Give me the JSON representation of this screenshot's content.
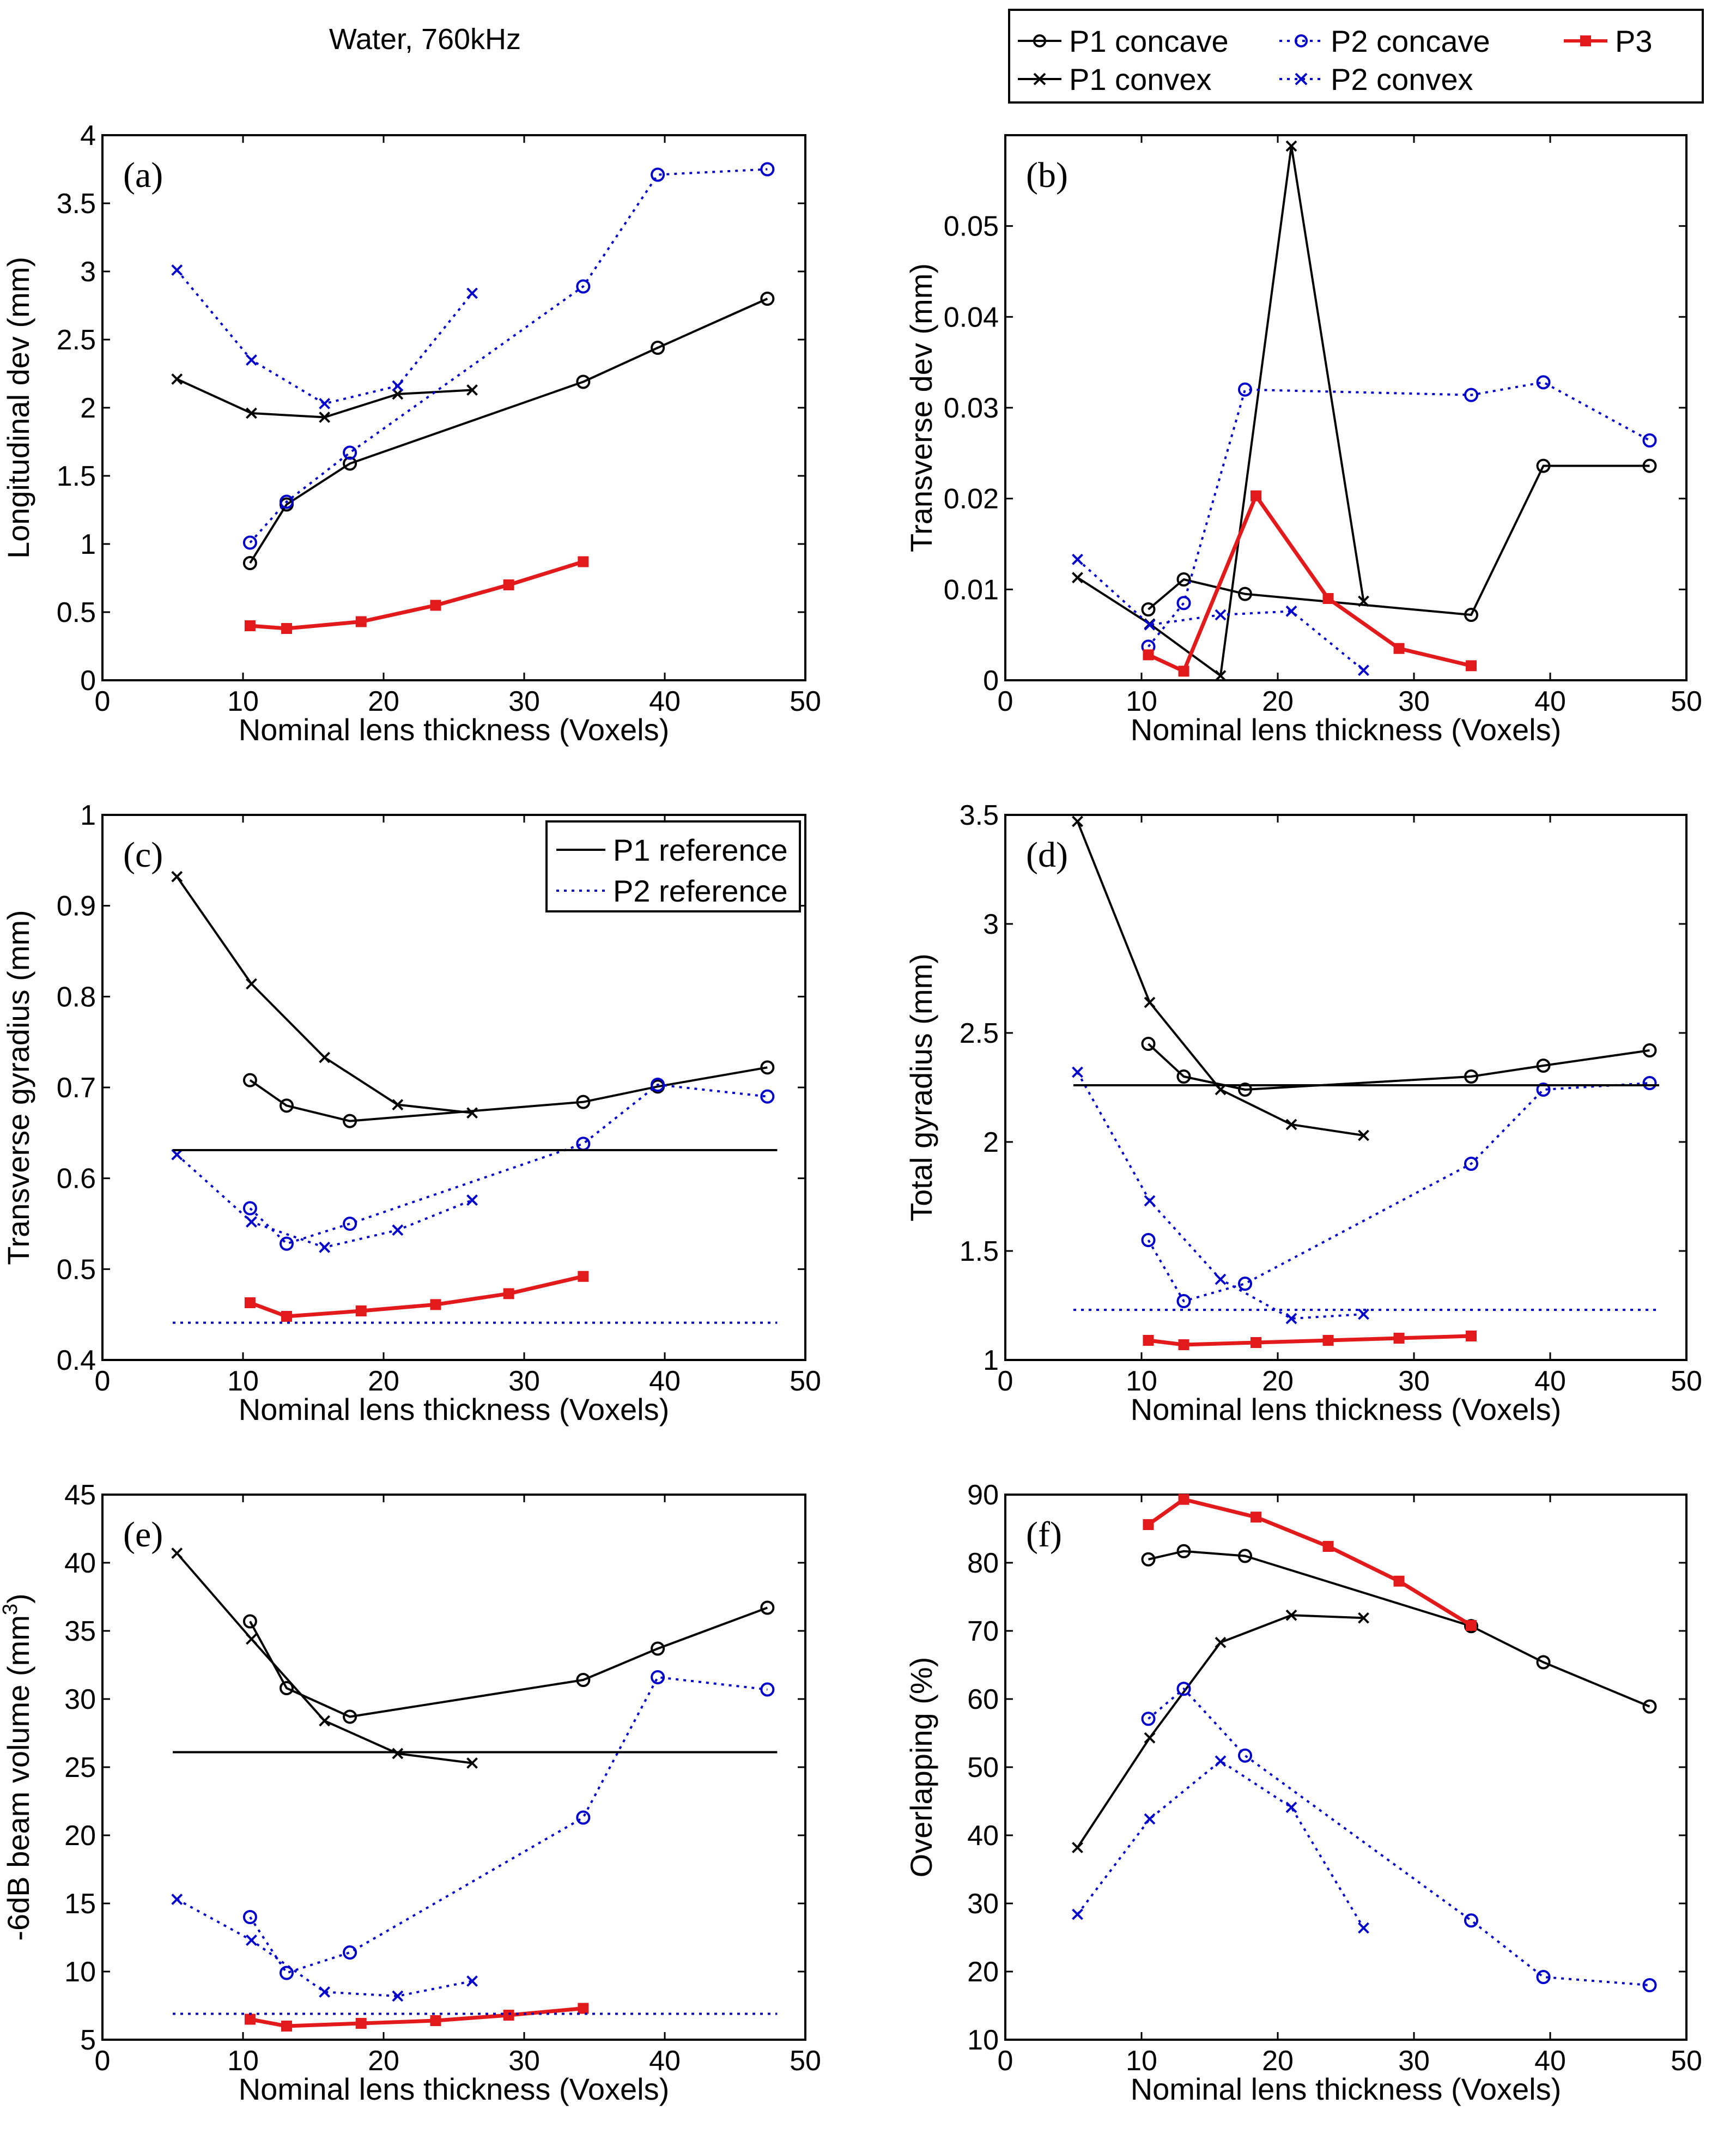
{
  "figure_title": "Water, 760kHz",
  "legend": {
    "entries": [
      {
        "key": "p1c",
        "label": "P1 concave"
      },
      {
        "key": "p2c",
        "label": "P2 concave"
      },
      {
        "key": "p3",
        "label": "P3"
      },
      {
        "key": "p1x",
        "label": "P1 convex"
      },
      {
        "key": "p2x",
        "label": "P2 convex"
      }
    ]
  },
  "styles": {
    "p1c": {
      "color": "#000000",
      "marker": "circle",
      "dash": "solid"
    },
    "p1x": {
      "color": "#000000",
      "marker": "cross",
      "dash": "solid"
    },
    "p2c": {
      "color": "#0000cc",
      "marker": "circle",
      "dash": "dotted"
    },
    "p2x": {
      "color": "#0000cc",
      "marker": "cross",
      "dash": "dotted"
    },
    "p3": {
      "color": "#e31a1c",
      "marker": "square",
      "dash": "solid"
    },
    "ref1": {
      "color": "#000000",
      "marker": "none",
      "dash": "solid"
    },
    "ref2": {
      "color": "#0000cc",
      "marker": "none",
      "dash": "dotted"
    }
  },
  "chart_data": [
    {
      "panel": "(a)",
      "type": "line",
      "xlabel": "Nominal lens thickness (Voxels)",
      "ylabel": "Longitudinal dev (mm)",
      "xlim": [
        0,
        50
      ],
      "ylim": [
        0,
        4
      ],
      "xticks": [
        "0",
        "10",
        "20",
        "30",
        "40",
        "50"
      ],
      "yticks": [
        "0",
        "0.5",
        "1",
        "1.5",
        "2",
        "2.5",
        "3",
        "3.5",
        "4"
      ],
      "series": [
        {
          "key": "p1c",
          "name": "P1 concave",
          "x": [
            10.5,
            13.1,
            17.6,
            34.2,
            39.5,
            47.3
          ],
          "y": [
            0.86,
            1.29,
            1.59,
            2.19,
            2.44,
            2.8
          ]
        },
        {
          "key": "p1x",
          "name": "P1 convex",
          "x": [
            5.3,
            10.6,
            15.8,
            21.0,
            26.3
          ],
          "y": [
            2.21,
            1.96,
            1.93,
            2.1,
            2.13
          ]
        },
        {
          "key": "p2c",
          "name": "P2 concave",
          "x": [
            10.5,
            13.1,
            17.6,
            34.2,
            39.5,
            47.3
          ],
          "y": [
            1.01,
            1.31,
            1.67,
            2.89,
            3.71,
            3.75
          ]
        },
        {
          "key": "p2x",
          "name": "P2 convex",
          "x": [
            5.3,
            10.6,
            15.8,
            21.0,
            26.3
          ],
          "y": [
            3.01,
            2.35,
            2.03,
            2.16,
            2.84
          ]
        },
        {
          "key": "p3",
          "name": "P3",
          "x": [
            10.5,
            13.1,
            18.4,
            23.7,
            28.9,
            34.2
          ],
          "y": [
            0.4,
            0.38,
            0.43,
            0.55,
            0.7,
            0.87
          ]
        }
      ]
    },
    {
      "panel": "(b)",
      "type": "line",
      "xlabel": "Nominal lens thickness (Voxels)",
      "ylabel": "Transverse dev (mm)",
      "xlim": [
        0,
        50
      ],
      "ylim": [
        0,
        0.06
      ],
      "xticks": [
        "0",
        "10",
        "20",
        "30",
        "40",
        "50"
      ],
      "yticks": [
        "0",
        "0.01",
        "0.02",
        "0.03",
        "0.04",
        "0.05"
      ],
      "series": [
        {
          "key": "p1c",
          "name": "P1 concave",
          "x": [
            10.5,
            13.1,
            17.6,
            34.2,
            39.5,
            47.3
          ],
          "y": [
            0.0078,
            0.0111,
            0.0095,
            0.0072,
            0.0236,
            0.0236
          ]
        },
        {
          "key": "p1x",
          "name": "P1 convex",
          "x": [
            5.3,
            10.6,
            15.8,
            21.0,
            26.3
          ],
          "y": [
            0.0113,
            0.0062,
            0.0005,
            0.0588,
            0.0087
          ]
        },
        {
          "key": "p2c",
          "name": "P2 concave",
          "x": [
            10.5,
            13.1,
            17.6,
            34.2,
            39.5,
            47.3
          ],
          "y": [
            0.0037,
            0.0085,
            0.032,
            0.0314,
            0.0328,
            0.0264
          ]
        },
        {
          "key": "p2x",
          "name": "P2 convex",
          "x": [
            5.3,
            10.6,
            15.8,
            21.0,
            26.3
          ],
          "y": [
            0.0133,
            0.0061,
            0.0072,
            0.0076,
            0.0011
          ]
        },
        {
          "key": "p3",
          "name": "P3",
          "x": [
            10.5,
            13.1,
            18.4,
            23.7,
            28.9,
            34.2
          ],
          "y": [
            0.0028,
            0.001,
            0.0203,
            0.009,
            0.0035,
            0.0016
          ]
        }
      ]
    },
    {
      "panel": "(c)",
      "type": "line",
      "xlabel": "Nominal lens thickness (Voxels)",
      "ylabel": "Transverse gyradius (mm)",
      "xlim": [
        0,
        50
      ],
      "ylim": [
        0.4,
        1.0
      ],
      "xticks": [
        "0",
        "10",
        "20",
        "30",
        "40",
        "50"
      ],
      "yticks": [
        "0.4",
        "0.5",
        "0.6",
        "0.7",
        "0.8",
        "0.9",
        "1"
      ],
      "legend": [
        {
          "key": "ref1",
          "label": "P1 reference"
        },
        {
          "key": "ref2",
          "label": "P2 reference"
        }
      ],
      "series": [
        {
          "key": "p1c",
          "name": "P1 concave",
          "x": [
            10.5,
            13.1,
            17.6,
            34.2,
            39.5,
            47.3
          ],
          "y": [
            0.708,
            0.68,
            0.663,
            0.684,
            0.701,
            0.722
          ]
        },
        {
          "key": "p1x",
          "name": "P1 convex",
          "x": [
            5.3,
            10.6,
            15.8,
            21.0,
            26.3
          ],
          "y": [
            0.932,
            0.814,
            0.733,
            0.681,
            0.672
          ]
        },
        {
          "key": "p2c",
          "name": "P2 concave",
          "x": [
            10.5,
            13.1,
            17.6,
            34.2,
            39.5,
            47.3
          ],
          "y": [
            0.567,
            0.528,
            0.55,
            0.638,
            0.703,
            0.69
          ]
        },
        {
          "key": "p2x",
          "name": "P2 convex",
          "x": [
            5.3,
            10.6,
            15.8,
            21.0,
            26.3
          ],
          "y": [
            0.626,
            0.552,
            0.524,
            0.543,
            0.576
          ]
        },
        {
          "key": "p3",
          "name": "P3",
          "x": [
            10.5,
            13.1,
            18.4,
            23.7,
            28.9,
            34.2
          ],
          "y": [
            0.463,
            0.448,
            0.454,
            0.461,
            0.473,
            0.492
          ]
        },
        {
          "key": "ref1",
          "name": "P1 reference",
          "x": [
            5,
            48
          ],
          "y": [
            0.631,
            0.631
          ]
        },
        {
          "key": "ref2",
          "name": "P2 reference",
          "x": [
            5,
            48
          ],
          "y": [
            0.441,
            0.441
          ]
        }
      ]
    },
    {
      "panel": "(d)",
      "type": "line",
      "xlabel": "Nominal lens thickness (Voxels)",
      "ylabel": "Total gyradius (mm)",
      "xlim": [
        0,
        50
      ],
      "ylim": [
        1,
        3.5
      ],
      "xticks": [
        "0",
        "10",
        "20",
        "30",
        "40",
        "50"
      ],
      "yticks": [
        "1",
        "1.5",
        "2",
        "2.5",
        "3",
        "3.5"
      ],
      "series": [
        {
          "key": "p1c",
          "name": "P1 concave",
          "x": [
            10.5,
            13.1,
            17.6,
            34.2,
            39.5,
            47.3
          ],
          "y": [
            2.45,
            2.3,
            2.24,
            2.3,
            2.35,
            2.42
          ]
        },
        {
          "key": "p1x",
          "name": "P1 convex",
          "x": [
            5.3,
            10.6,
            15.8,
            21.0,
            26.3
          ],
          "y": [
            3.47,
            2.64,
            2.24,
            2.08,
            2.03
          ]
        },
        {
          "key": "p2c",
          "name": "P2 concave",
          "x": [
            10.5,
            13.1,
            17.6,
            34.2,
            39.5,
            47.3
          ],
          "y": [
            1.55,
            1.27,
            1.35,
            1.9,
            2.24,
            2.27
          ]
        },
        {
          "key": "p2x",
          "name": "P2 convex",
          "x": [
            5.3,
            10.6,
            15.8,
            21.0,
            26.3
          ],
          "y": [
            2.32,
            1.73,
            1.37,
            1.19,
            1.21
          ]
        },
        {
          "key": "p3",
          "name": "P3",
          "x": [
            10.5,
            13.1,
            18.4,
            23.7,
            28.9,
            34.2
          ],
          "y": [
            1.09,
            1.07,
            1.08,
            1.09,
            1.1,
            1.11
          ]
        },
        {
          "key": "ref1",
          "name": "P1 reference",
          "x": [
            5,
            48
          ],
          "y": [
            2.26,
            2.26
          ]
        },
        {
          "key": "ref2",
          "name": "P2 reference",
          "x": [
            5,
            48
          ],
          "y": [
            1.23,
            1.23
          ]
        }
      ]
    },
    {
      "panel": "(e)",
      "type": "line",
      "xlabel": "Nominal lens thickness (Voxels)",
      "ylabel": "-6dB beam volume (mm",
      "ylabel_sup": "3",
      "ylabel_end": ")",
      "xlim": [
        0,
        50
      ],
      "ylim": [
        5,
        45
      ],
      "xticks": [
        "0",
        "10",
        "20",
        "30",
        "40",
        "50"
      ],
      "yticks": [
        "5",
        "10",
        "15",
        "20",
        "25",
        "30",
        "35",
        "40",
        "45"
      ],
      "series": [
        {
          "key": "p1c",
          "name": "P1 concave",
          "x": [
            10.5,
            13.1,
            17.6,
            34.2,
            39.5,
            47.3
          ],
          "y": [
            35.7,
            30.8,
            28.7,
            31.4,
            33.7,
            36.7
          ]
        },
        {
          "key": "p1x",
          "name": "P1 convex",
          "x": [
            5.3,
            10.6,
            15.8,
            21.0,
            26.3
          ],
          "y": [
            40.7,
            34.4,
            28.4,
            26.0,
            25.3
          ]
        },
        {
          "key": "p2c",
          "name": "P2 concave",
          "x": [
            10.5,
            13.1,
            17.6,
            34.2,
            39.5,
            47.3
          ],
          "y": [
            14.0,
            9.9,
            11.4,
            21.3,
            31.6,
            30.7
          ]
        },
        {
          "key": "p2x",
          "name": "P2 convex",
          "x": [
            5.3,
            10.6,
            15.8,
            21.0,
            26.3
          ],
          "y": [
            15.3,
            12.3,
            8.5,
            8.2,
            9.3
          ]
        },
        {
          "key": "p3",
          "name": "P3",
          "x": [
            10.5,
            13.1,
            18.4,
            23.7,
            28.9,
            34.2
          ],
          "y": [
            6.5,
            6.0,
            6.2,
            6.4,
            6.8,
            7.3
          ]
        },
        {
          "key": "ref1",
          "name": "P1 reference",
          "x": [
            5,
            48
          ],
          "y": [
            26.1,
            26.1
          ]
        },
        {
          "key": "ref2",
          "name": "P2 reference",
          "x": [
            5,
            48
          ],
          "y": [
            6.9,
            6.9
          ]
        }
      ]
    },
    {
      "panel": "(f)",
      "type": "line",
      "xlabel": "Nominal lens thickness (Voxels)",
      "ylabel": "Overlapping (%)",
      "xlim": [
        0,
        50
      ],
      "ylim": [
        10,
        90
      ],
      "xticks": [
        "0",
        "10",
        "20",
        "30",
        "40",
        "50"
      ],
      "yticks": [
        "10",
        "20",
        "30",
        "40",
        "50",
        "60",
        "70",
        "80",
        "90"
      ],
      "series": [
        {
          "key": "p1c",
          "name": "P1 concave",
          "x": [
            10.5,
            13.1,
            17.6,
            34.2,
            39.5,
            47.3
          ],
          "y": [
            80.5,
            81.7,
            81.0,
            70.7,
            65.4,
            58.9
          ]
        },
        {
          "key": "p1x",
          "name": "P1 convex",
          "x": [
            5.3,
            10.6,
            15.8,
            21.0,
            26.3
          ],
          "y": [
            38.2,
            54.3,
            68.3,
            72.3,
            71.9
          ]
        },
        {
          "key": "p2c",
          "name": "P2 concave",
          "x": [
            10.5,
            13.1,
            17.6,
            34.2,
            39.5,
            47.3
          ],
          "y": [
            57.1,
            61.5,
            51.7,
            27.5,
            19.2,
            18.0
          ]
        },
        {
          "key": "p2x",
          "name": "P2 convex",
          "x": [
            5.3,
            10.6,
            15.8,
            21.0,
            26.3
          ],
          "y": [
            28.4,
            42.4,
            50.9,
            44.1,
            26.4
          ]
        },
        {
          "key": "p3",
          "name": "P3",
          "x": [
            10.5,
            13.1,
            18.4,
            23.7,
            28.9,
            34.2
          ],
          "y": [
            85.6,
            89.3,
            86.7,
            82.4,
            77.3,
            70.8
          ]
        }
      ]
    }
  ]
}
